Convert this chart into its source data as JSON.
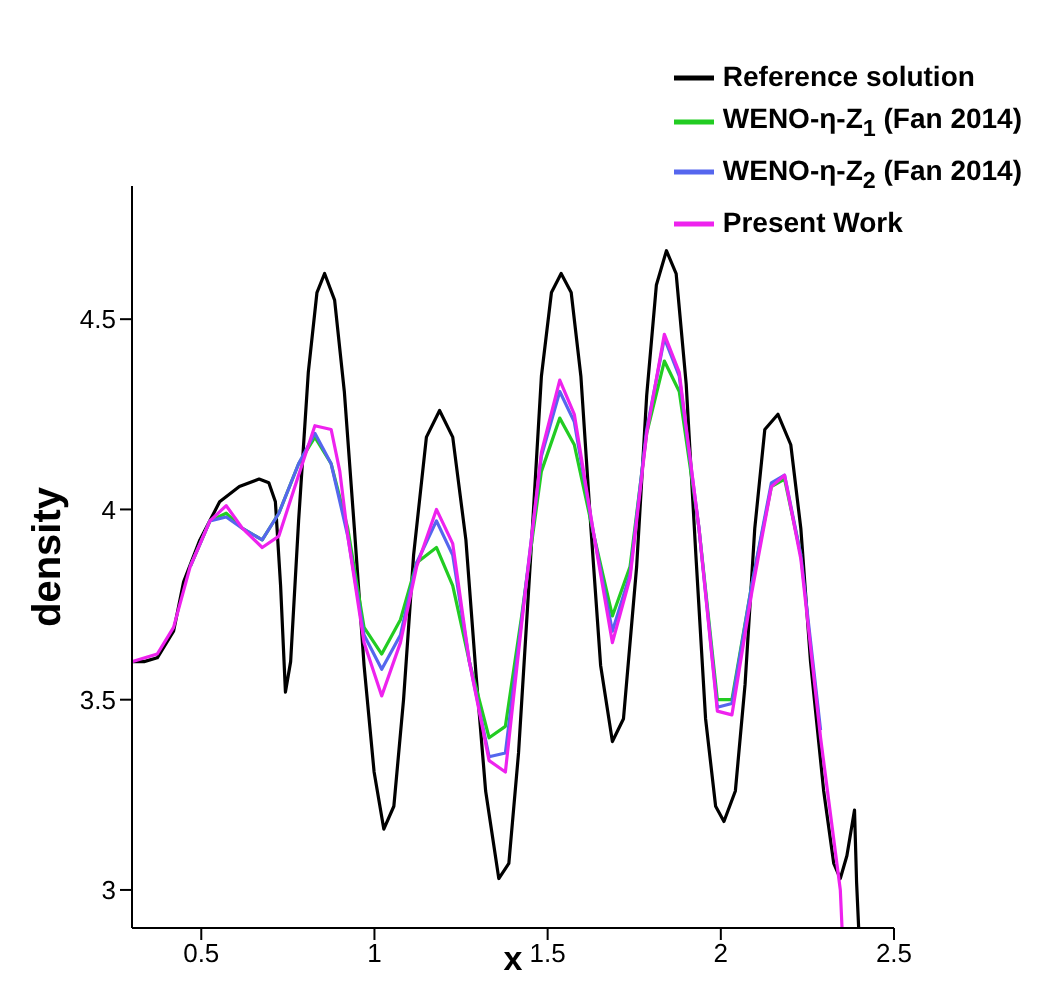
{
  "chart_data": {
    "type": "line",
    "xlabel": "x",
    "ylabel": "density",
    "xlim": [
      0.3,
      2.5
    ],
    "ylim": [
      2.9,
      4.85
    ],
    "xticks": [
      0.5,
      1,
      1.5,
      2,
      2.5
    ],
    "yticks": [
      3,
      3.5,
      4,
      4.5
    ],
    "grid": false,
    "legend": "top right",
    "marker": "none",
    "line_style": "solid",
    "series": [
      {
        "name": "Reference solution",
        "color": "#000000",
        "x": [
          0.3,
          0.335,
          0.373,
          0.42,
          0.449,
          0.496,
          0.553,
          0.61,
          0.667,
          0.695,
          0.714,
          0.729,
          0.743,
          0.758,
          0.781,
          0.809,
          0.834,
          0.856,
          0.885,
          0.913,
          0.942,
          0.97,
          0.999,
          1.027,
          1.056,
          1.084,
          1.113,
          1.15,
          1.188,
          1.226,
          1.264,
          1.293,
          1.321,
          1.359,
          1.388,
          1.416,
          1.454,
          1.482,
          1.511,
          1.539,
          1.568,
          1.596,
          1.625,
          1.653,
          1.687,
          1.719,
          1.757,
          1.786,
          1.814,
          1.843,
          1.871,
          1.9,
          1.928,
          1.956,
          1.985,
          2.009,
          2.042,
          2.07,
          2.098,
          2.127,
          2.165,
          2.202,
          2.231,
          2.259,
          2.297,
          2.326,
          2.345,
          2.364,
          2.386,
          2.392,
          2.398
        ],
        "values": [
          3.6,
          3.6,
          3.61,
          3.68,
          3.81,
          3.92,
          4.02,
          4.06,
          4.08,
          4.07,
          4.02,
          3.8,
          3.52,
          3.6,
          3.97,
          4.36,
          4.57,
          4.62,
          4.55,
          4.31,
          3.95,
          3.59,
          3.31,
          3.16,
          3.22,
          3.5,
          3.88,
          4.19,
          4.26,
          4.19,
          3.92,
          3.57,
          3.26,
          3.03,
          3.07,
          3.36,
          3.92,
          4.35,
          4.57,
          4.62,
          4.57,
          4.35,
          3.95,
          3.59,
          3.39,
          3.45,
          3.85,
          4.3,
          4.59,
          4.68,
          4.62,
          4.33,
          3.88,
          3.45,
          3.22,
          3.18,
          3.26,
          3.54,
          3.95,
          4.21,
          4.25,
          4.17,
          3.95,
          3.6,
          3.26,
          3.07,
          3.03,
          3.09,
          3.21,
          3.02,
          2.9
        ]
      },
      {
        "name": "WENO-η-Z$_{1}$ (Fan 2014)",
        "color": "#22cc22",
        "x": [
          0.468,
          0.525,
          0.572,
          0.619,
          0.676,
          0.724,
          0.781,
          0.828,
          0.875,
          0.923,
          0.97,
          1.021,
          1.075,
          1.122,
          1.179,
          1.226,
          1.274,
          1.331,
          1.378,
          1.425,
          1.482,
          1.535,
          1.577,
          1.634,
          1.687,
          1.738,
          1.786,
          1.837,
          1.88,
          1.937,
          1.99,
          2.032,
          2.089,
          2.146,
          2.184,
          2.231
        ],
        "values": [
          3.85,
          3.97,
          3.99,
          3.95,
          3.92,
          3.99,
          4.12,
          4.19,
          4.12,
          3.95,
          3.69,
          3.62,
          3.71,
          3.86,
          3.9,
          3.8,
          3.6,
          3.4,
          3.43,
          3.72,
          4.1,
          4.24,
          4.17,
          3.93,
          3.72,
          3.85,
          4.2,
          4.39,
          4.31,
          3.95,
          3.5,
          3.5,
          3.8,
          4.06,
          4.08,
          3.88
        ]
      },
      {
        "name": "WENO-η-Z$_{2}$ (Fan 2014)",
        "color": "#5566ee",
        "x": [
          0.468,
          0.525,
          0.572,
          0.619,
          0.676,
          0.724,
          0.781,
          0.828,
          0.875,
          0.923,
          0.97,
          1.021,
          1.075,
          1.122,
          1.179,
          1.226,
          1.274,
          1.331,
          1.378,
          1.425,
          1.482,
          1.535,
          1.577,
          1.634,
          1.687,
          1.738,
          1.786,
          1.837,
          1.88,
          1.937,
          1.99,
          2.032,
          2.089,
          2.146,
          2.184,
          2.231,
          2.288
        ],
        "values": [
          3.85,
          3.97,
          3.98,
          3.95,
          3.92,
          3.99,
          4.12,
          4.2,
          4.12,
          3.93,
          3.67,
          3.58,
          3.67,
          3.86,
          3.97,
          3.88,
          3.6,
          3.35,
          3.36,
          3.71,
          4.14,
          4.31,
          4.23,
          3.93,
          3.68,
          3.83,
          4.21,
          4.45,
          4.35,
          3.95,
          3.48,
          3.49,
          3.8,
          4.07,
          4.09,
          3.88,
          3.42
        ]
      },
      {
        "name": "Present Work",
        "color": "#ee22ee",
        "x": [
          0.3,
          0.373,
          0.42,
          0.468,
          0.525,
          0.572,
          0.619,
          0.676,
          0.724,
          0.781,
          0.828,
          0.875,
          0.9,
          0.923,
          0.97,
          1.021,
          1.075,
          1.122,
          1.179,
          1.226,
          1.274,
          1.331,
          1.378,
          1.425,
          1.482,
          1.535,
          1.577,
          1.634,
          1.687,
          1.738,
          1.786,
          1.837,
          1.88,
          1.937,
          1.99,
          2.032,
          2.089,
          2.146,
          2.184,
          2.231,
          2.288,
          2.345,
          2.35
        ],
        "values": [
          3.6,
          3.62,
          3.69,
          3.85,
          3.97,
          4.01,
          3.95,
          3.9,
          3.93,
          4.09,
          4.22,
          4.21,
          4.1,
          3.93,
          3.65,
          3.51,
          3.65,
          3.85,
          4.0,
          3.91,
          3.6,
          3.34,
          3.31,
          3.7,
          4.15,
          4.34,
          4.25,
          3.93,
          3.65,
          3.82,
          4.2,
          4.46,
          4.36,
          3.95,
          3.47,
          3.46,
          3.78,
          4.06,
          4.09,
          3.87,
          3.4,
          3.0,
          2.9
        ]
      }
    ]
  }
}
